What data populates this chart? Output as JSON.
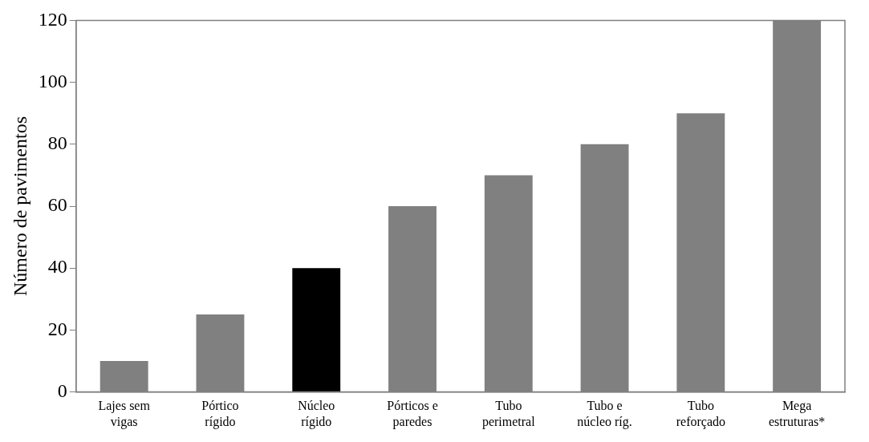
{
  "chart_data": {
    "type": "bar",
    "ylabel": "Número de pavimentos",
    "categories": [
      "Lajes sem\nvigas",
      "Pórtico\nrígido",
      "Núcleo\nrígido",
      "Pórticos e\nparedes",
      "Tubo\nperimetral",
      "Tubo e\nnúcleo ríg.",
      "Tubo\nreforçado",
      "Mega\nestruturas*"
    ],
    "values": [
      10,
      25,
      40,
      60,
      70,
      80,
      90,
      120
    ],
    "colors": [
      "#808080",
      "#808080",
      "#000000",
      "#808080",
      "#808080",
      "#808080",
      "#808080",
      "#808080"
    ],
    "ylim": [
      0,
      120
    ],
    "yticks": [
      0,
      20,
      40,
      60,
      80,
      100,
      120
    ],
    "grid": false,
    "legend": false
  }
}
